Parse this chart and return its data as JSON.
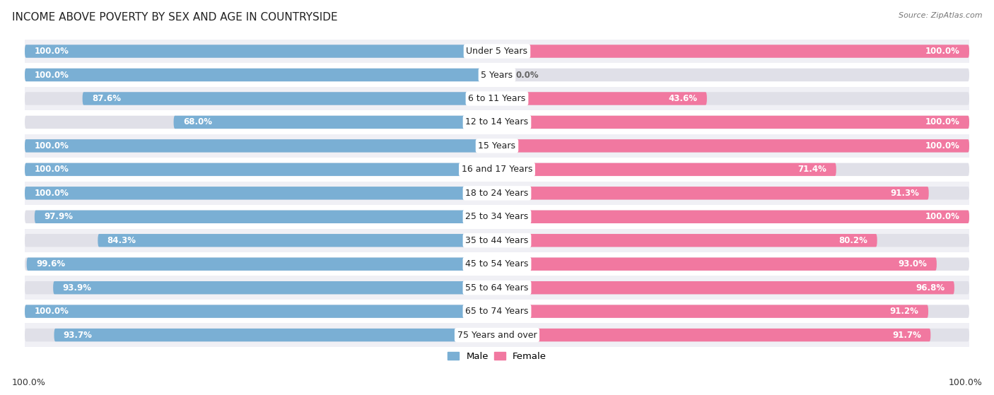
{
  "title": "INCOME ABOVE POVERTY BY SEX AND AGE IN COUNTRYSIDE",
  "source": "Source: ZipAtlas.com",
  "categories": [
    "Under 5 Years",
    "5 Years",
    "6 to 11 Years",
    "12 to 14 Years",
    "15 Years",
    "16 and 17 Years",
    "18 to 24 Years",
    "25 to 34 Years",
    "35 to 44 Years",
    "45 to 54 Years",
    "55 to 64 Years",
    "65 to 74 Years",
    "75 Years and over"
  ],
  "male_values": [
    100.0,
    100.0,
    87.6,
    68.0,
    100.0,
    100.0,
    100.0,
    97.9,
    84.3,
    99.6,
    93.9,
    100.0,
    93.7
  ],
  "female_values": [
    100.0,
    0.0,
    43.6,
    100.0,
    100.0,
    71.4,
    91.3,
    100.0,
    80.2,
    93.0,
    96.8,
    91.2,
    91.7
  ],
  "male_color": "#7aafd4",
  "female_color": "#f178a0",
  "male_color_light": "#b8d7ee",
  "female_color_light": "#f8b8ca",
  "track_color": "#e0e0e8",
  "background_color": "#ffffff",
  "row_bg_color": "#f0f0f5",
  "title_fontsize": 11,
  "label_fontsize": 9,
  "value_fontsize": 8.5,
  "bottom_left_label": "100.0%",
  "bottom_right_label": "100.0%"
}
